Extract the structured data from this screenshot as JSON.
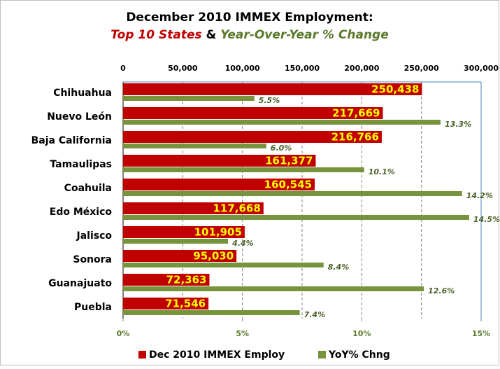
{
  "chart_data": {
    "type": "bar",
    "title": "December 2010 IMMEX Employment:",
    "subtitle_parts": [
      "Top 10 States",
      "&",
      "Year-Over-Year % Change"
    ],
    "categories": [
      "Chihuahua",
      "Nuevo León",
      "Baja California",
      "Tamaulipas",
      "Coahuila",
      "Edo México",
      "Jalisco",
      "Sonora",
      "Guanajuato",
      "Puebla"
    ],
    "series": [
      {
        "name": "Dec 2010 IMMEX Employ",
        "color": "#c00000",
        "axis": "x",
        "values": [
          250438,
          217669,
          216766,
          161377,
          160545,
          117668,
          101905,
          95030,
          72363,
          71546
        ],
        "value_labels": [
          "250,438",
          "217,669",
          "216,766",
          "161,377",
          "160,545",
          "117,668",
          "101,905",
          "95,030",
          "72,363",
          "71,546"
        ]
      },
      {
        "name": "YoY% Chng",
        "color": "#77933c",
        "axis": "x2",
        "values": [
          5.5,
          13.3,
          6.0,
          10.1,
          14.2,
          14.5,
          4.4,
          8.4,
          12.6,
          7.4
        ],
        "value_labels": [
          "5.5%",
          "13.3%",
          "6.0%",
          "10.1%",
          "14.2%",
          "14.5%",
          "4.4%",
          "8.4%",
          "12.6%",
          "7.4%"
        ]
      }
    ],
    "xlim": [
      0,
      300000
    ],
    "xticks": [
      0,
      {
        "value": 50000,
        "label": "50,000"
      },
      {
        "value": 100000,
        "label": "100,000"
      },
      {
        "value": 150000,
        "label": "150,000"
      },
      {
        "value": 200000,
        "label": "200,000"
      },
      {
        "value": 250000,
        "label": "250,000"
      },
      {
        "value": 300000,
        "label": "300,000"
      }
    ],
    "x2lim": [
      0,
      15
    ],
    "x2ticks": [
      {
        "value": 0,
        "label": "0%"
      },
      {
        "value": 5,
        "label": "5%"
      },
      {
        "value": 10,
        "label": "10%"
      },
      {
        "value": 15,
        "label": "15%"
      }
    ],
    "grid": true,
    "legend": "bottom"
  }
}
